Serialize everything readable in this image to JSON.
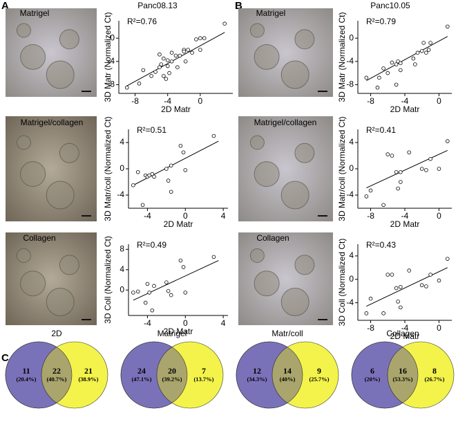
{
  "panels": [
    {
      "letter": "A",
      "cell_line": "Panc08.13"
    },
    {
      "letter": "B",
      "cell_line": "Panc10.05"
    },
    {
      "letter": "C"
    }
  ],
  "chart_data": [
    {
      "type": "scatter",
      "image_label": "Matrigel",
      "annotation": "R²=0.76",
      "x_label": "2D Matr",
      "y_label": "3D Matr (Normalized Ct)",
      "x": [
        -9,
        -7.5,
        -7,
        -6,
        -5.5,
        -5,
        -5,
        -4.8,
        -4.5,
        -4.5,
        -4.2,
        -4,
        -4,
        -3.8,
        -3.5,
        -3.5,
        -3,
        -2.8,
        -2.5,
        -2,
        -2,
        -1.8,
        -1.5,
        -1,
        -0.5,
        0,
        0,
        0.5,
        3
      ],
      "y": [
        -8.5,
        -7.8,
        -5.5,
        -6.5,
        -5.8,
        -2.8,
        -5,
        -4.5,
        -6.5,
        -3.5,
        -7,
        -4.8,
        -3.8,
        -6,
        -4,
        -2.5,
        -3,
        -5,
        -3,
        -2,
        -2.3,
        -4,
        -2,
        -2.5,
        -0.2,
        -2,
        0,
        0,
        2.5
      ],
      "fit": {
        "x": [
          -9,
          3
        ],
        "y": [
          -8.2,
          1
        ]
      },
      "xlim": [
        -10,
        4
      ],
      "ylim": [
        -9.5,
        3
      ],
      "xticks": [
        -8,
        -4,
        0
      ],
      "yticks": [
        -8,
        -4,
        0
      ]
    },
    {
      "type": "scatter",
      "image_label": "Matrigel/collagen",
      "annotation": "R²=0.51",
      "x_label": "2D Matr",
      "y_label": "3D Matr/coll (Normalized Ct)",
      "x": [
        -5.5,
        -5,
        -4.5,
        -4.2,
        -4,
        -3.8,
        -3.5,
        -3.3,
        -2,
        -1.8,
        -1.5,
        -1.5,
        -0.5,
        -0.2,
        0,
        3
      ],
      "y": [
        -2.5,
        -0.5,
        -5.5,
        -1,
        -1.2,
        -1,
        -0.8,
        -1.2,
        0,
        -1.8,
        0.5,
        -3.5,
        3.5,
        2.5,
        -0.2,
        5
      ],
      "fit": {
        "x": [
          -5.5,
          3.5
        ],
        "y": [
          -2.5,
          4.2
        ]
      },
      "xlim": [
        -6,
        4.5
      ],
      "ylim": [
        -6,
        6
      ],
      "xticks": [
        -4,
        0,
        4
      ],
      "yticks": [
        -4,
        0,
        4
      ]
    },
    {
      "type": "scatter",
      "image_label": "Collagen",
      "annotation": "R²=0.49",
      "x_label": "2D Matr",
      "y_label": "3D Coll (Normalized Ct)",
      "x": [
        -5.5,
        -5,
        -4.2,
        -4,
        -3.8,
        -3.5,
        -3.3,
        -2,
        -1.8,
        -1.5,
        -0.5,
        -0.2,
        0,
        3
      ],
      "y": [
        -0.5,
        -0.3,
        -2.5,
        1.2,
        -0.5,
        -4,
        0.8,
        1.5,
        -0.2,
        -1,
        5.8,
        4.5,
        -0.5,
        6.5
      ],
      "fit": {
        "x": [
          -5.5,
          3.5
        ],
        "y": [
          -2,
          5.8
        ]
      },
      "xlim": [
        -6,
        4.5
      ],
      "ylim": [
        -5,
        9
      ],
      "xticks": [
        -4,
        0,
        4
      ],
      "yticks": [
        0,
        4,
        8
      ]
    },
    {
      "type": "scatter",
      "image_label": "Matrigel",
      "annotation": "R²=0.79",
      "x_label": "2D Matr",
      "y_label": "3D Matr (Normalized Ct)",
      "x": [
        -8.5,
        -7.2,
        -7,
        -6.5,
        -6,
        -5.5,
        -5,
        -5,
        -4.8,
        -4.5,
        -4.5,
        -3,
        -2.8,
        -2.5,
        -2,
        -1.8,
        -1.5,
        -1.2,
        -1,
        1
      ],
      "y": [
        -6.8,
        -8.5,
        -6.8,
        -5.2,
        -6,
        -4.2,
        -4.5,
        -8,
        -4,
        -4.3,
        -5.5,
        -3.5,
        -4.5,
        -2.5,
        -2.2,
        -0.8,
        -2.5,
        -2,
        -0.8,
        2
      ],
      "fit": {
        "x": [
          -8.5,
          1
        ],
        "y": [
          -7.3,
          0.3
        ]
      },
      "xlim": [
        -9.5,
        1.5
      ],
      "ylim": [
        -9.5,
        3
      ],
      "xticks": [
        -8,
        -4,
        0
      ],
      "yticks": [
        -8,
        -4,
        0
      ]
    },
    {
      "type": "scatter",
      "image_label": "Matrigel/collagen",
      "annotation": "R²=0.41",
      "x_label": "2D Matr",
      "y_label": "3D Matr/coll (Normalized Ct)",
      "x": [
        -8.5,
        -8,
        -6.5,
        -6,
        -5.5,
        -5,
        -4.8,
        -4.5,
        -4.5,
        -3.5,
        -2,
        -1.5,
        -1,
        0,
        1
      ],
      "y": [
        -4.2,
        -3.3,
        -5.5,
        2.2,
        2,
        -0.5,
        -3,
        -0.5,
        -2,
        2.5,
        0,
        -0.2,
        1.5,
        0,
        4.2
      ],
      "fit": {
        "x": [
          -8.5,
          1
        ],
        "y": [
          -2.9,
          2.8
        ]
      },
      "xlim": [
        -9.5,
        1.5
      ],
      "ylim": [
        -6,
        6
      ],
      "xticks": [
        -8,
        -4,
        0
      ],
      "yticks": [
        -4,
        0,
        4
      ]
    },
    {
      "type": "scatter",
      "image_label": "Collagen",
      "annotation": "R²=0.43",
      "x_label": "2D Matr",
      "y_label": "3D Coll (Normalized Ct)",
      "x": [
        -8.5,
        -8,
        -6.5,
        -6,
        -5.5,
        -5,
        -4.8,
        -4.5,
        -4.5,
        -3.5,
        -2,
        -1.5,
        -1,
        0,
        1
      ],
      "y": [
        -5.8,
        -3.3,
        -5.8,
        0.8,
        0.8,
        -1.5,
        -3.8,
        -1.3,
        -4.8,
        1.5,
        -1,
        -1.2,
        0.8,
        -0.2,
        3.5
      ],
      "fit": {
        "x": [
          -8.5,
          1
        ],
        "y": [
          -4.6,
          2
        ]
      },
      "xlim": [
        -9.5,
        1.5
      ],
      "ylim": [
        -7,
        6
      ],
      "xticks": [
        -8,
        -4,
        0
      ],
      "yticks": [
        -4,
        0,
        4
      ]
    },
    {
      "type": "venn",
      "title": "2D",
      "colors": [
        "#7a72b9",
        "#f3f34c",
        "#aaa56c"
      ],
      "values": [
        11,
        22,
        21
      ],
      "percent_labels": [
        "(20.4%)",
        "(40.7%)",
        "(38.9%)"
      ]
    },
    {
      "type": "venn",
      "title": "Matrigel",
      "colors": [
        "#7a72b9",
        "#f3f34c",
        "#aaa56c"
      ],
      "values": [
        24,
        20,
        7
      ],
      "percent_labels": [
        "(47.1%)",
        "(39.2%)",
        "(13.7%)"
      ]
    },
    {
      "type": "venn",
      "title": "Matr/coll",
      "colors": [
        "#7a72b9",
        "#f3f34c",
        "#aaa56c"
      ],
      "values": [
        12,
        14,
        9
      ],
      "percent_labels": [
        "(34.3%)",
        "(40%)",
        "(25.7%)"
      ]
    },
    {
      "type": "venn",
      "title": "Collagen",
      "colors": [
        "#7a72b9",
        "#f3f34c",
        "#aaa56c"
      ],
      "values": [
        6,
        16,
        8
      ],
      "percent_labels": [
        "(20%)",
        "(53.3%)",
        "(26.7%)"
      ]
    }
  ]
}
